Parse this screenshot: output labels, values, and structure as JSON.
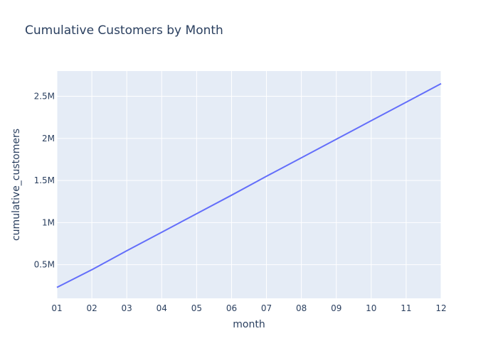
{
  "chart_data": {
    "type": "line",
    "title": "Cumulative Customers by Month",
    "xlabel": "month",
    "ylabel": "cumulative_customers",
    "categories": [
      "01",
      "02",
      "03",
      "04",
      "05",
      "06",
      "07",
      "08",
      "09",
      "10",
      "11",
      "12"
    ],
    "series": [
      {
        "values": [
          230000,
          440000,
          665000,
          885000,
          1105000,
          1325000,
          1550000,
          1770000,
          1990000,
          2210000,
          2430000,
          2650000
        ]
      }
    ],
    "ylim": [
      100000,
      2800000
    ],
    "yticks": [
      500000,
      1000000,
      1500000,
      2000000,
      2500000
    ],
    "ytick_labels": [
      "0.5M",
      "1M",
      "1.5M",
      "2M",
      "2.5M"
    ],
    "grid": true,
    "colors": {
      "plot_bg": "#E5ECF6",
      "grid": "#ffffff",
      "line": "#636EFA",
      "text": "#2a3f5f"
    }
  }
}
